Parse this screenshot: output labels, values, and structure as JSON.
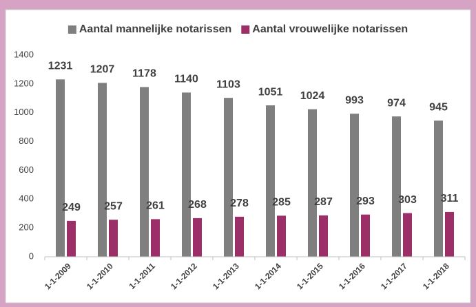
{
  "chart_data": {
    "type": "bar",
    "categories": [
      "1-1-2009",
      "1-1-2010",
      "1-1-2011",
      "1-1-2012",
      "1-1-2013",
      "1-1-2014",
      "1-1-2015",
      "1-1-2016",
      "1-1-2017",
      "1-1-2018"
    ],
    "series": [
      {
        "name": "Aantal mannelijke notarissen",
        "color": "#7f7f7f",
        "values": [
          1231,
          1207,
          1178,
          1140,
          1103,
          1051,
          1024,
          993,
          974,
          945
        ]
      },
      {
        "name": "Aantal vrouwelijke notarissen",
        "color": "#9c2f68",
        "values": [
          249,
          257,
          261,
          268,
          278,
          285,
          287,
          293,
          303,
          311
        ]
      }
    ],
    "ylim": [
      0,
      1400
    ],
    "yticks": [
      0,
      200,
      400,
      600,
      800,
      1000,
      1200,
      1400
    ],
    "grid": false,
    "legend": "top"
  }
}
